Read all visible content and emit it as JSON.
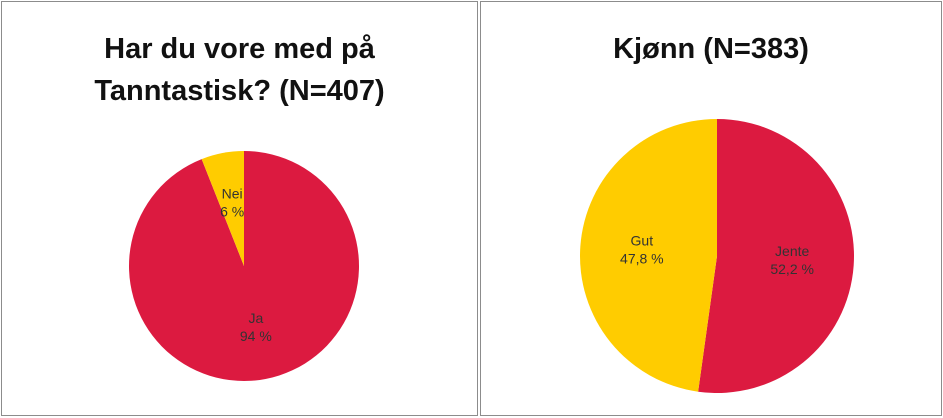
{
  "chart_data": [
    {
      "type": "pie",
      "title": "Har du vore med på Tanntastisk? (N=407)",
      "categories": [
        "Ja",
        "Nei"
      ],
      "values": [
        94,
        6
      ],
      "value_labels": [
        "94 %",
        "6 %"
      ],
      "colors": [
        "#dc1a40",
        "#ffcc00"
      ]
    },
    {
      "type": "pie",
      "title": "Kjønn (N=383)",
      "categories": [
        "Jente",
        "Gut"
      ],
      "values": [
        52.2,
        47.8
      ],
      "value_labels": [
        "52,2 %",
        "47,8 %"
      ],
      "colors": [
        "#dc1a40",
        "#ffcc00"
      ]
    }
  ]
}
